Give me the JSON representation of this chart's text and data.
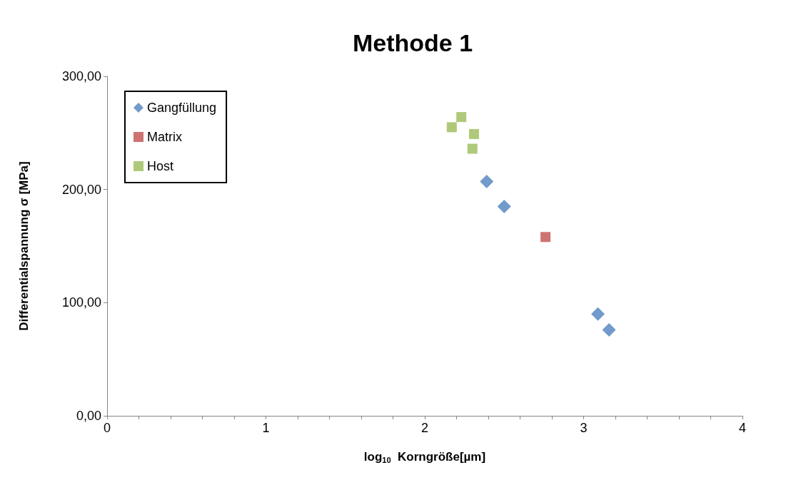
{
  "chart_data": {
    "type": "scatter",
    "title": "Methode 1",
    "xlabel": "log$_{10}$  Korngröße[µm]",
    "ylabel": "Differentialspannung σ [MPa]",
    "xlim": [
      0,
      4
    ],
    "xticks": [
      0,
      {
        "value": 0.2,
        "label": null
      },
      {
        "value": 0.4,
        "label": null
      },
      {
        "value": 0.6,
        "label": null
      },
      {
        "value": 0.8,
        "label": null
      },
      1,
      {
        "value": 1.2,
        "label": null
      },
      {
        "value": 1.4,
        "label": null
      },
      {
        "value": 1.6,
        "label": null
      },
      {
        "value": 1.8,
        "label": null
      },
      2,
      {
        "value": 2.2,
        "label": null
      },
      {
        "value": 2.4,
        "label": null
      },
      {
        "value": 2.6,
        "label": null
      },
      {
        "value": 2.8,
        "label": null
      },
      3,
      {
        "value": 3.2,
        "label": null
      },
      {
        "value": 3.4,
        "label": null
      },
      {
        "value": 3.6,
        "label": null
      },
      {
        "value": 3.8,
        "label": null
      },
      4
    ],
    "ylim": [
      0,
      300
    ],
    "yticks": [
      {
        "value": 0,
        "label": "0,00"
      },
      {
        "value": 100,
        "label": "100,00"
      },
      {
        "value": 200,
        "label": "200,00"
      },
      {
        "value": 300,
        "label": "300,00"
      }
    ],
    "grid": false,
    "legend": "top left",
    "series": [
      {
        "name": "Gangfüllung",
        "color": "#4f81bd",
        "marker": "diamond",
        "x": [
          2.39,
          2.5,
          3.09,
          3.16
        ],
        "values": [
          207,
          185,
          90,
          76
        ]
      },
      {
        "name": "Matrix",
        "color": "#c0504d",
        "marker": "square",
        "x": [
          2.76
        ],
        "values": [
          158
        ]
      },
      {
        "name": "Host",
        "color": "#9bbb59",
        "marker": "square",
        "x": [
          2.17,
          2.23,
          2.31,
          2.3
        ],
        "values": [
          255,
          264,
          249,
          236
        ]
      }
    ]
  }
}
